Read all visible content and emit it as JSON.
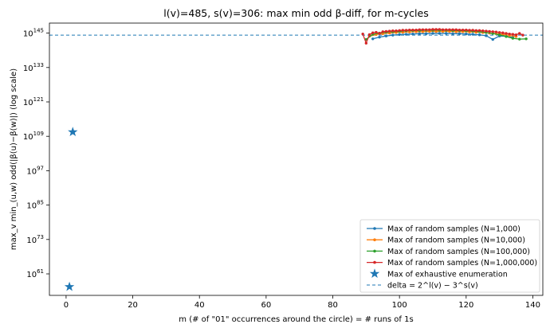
{
  "chart_data": {
    "type": "line",
    "title": "l(v)=485, s(v)=306: max min odd β-diff, for m-cycles",
    "xlabel": "m  (# of \"01\" occurrences around the circle)  = # runs of 1s",
    "ylabel": "max_v min_(u,w) odd(|β(u)−β(w)|)  (log scale)",
    "y_scale": "log10",
    "xlim": [
      -5,
      143
    ],
    "ylim_log10": [
      53.5,
      148.5
    ],
    "x_ticks": [
      0,
      20,
      40,
      60,
      80,
      100,
      120,
      140
    ],
    "y_ticks": [
      {
        "exp": 61,
        "label": "61"
      },
      {
        "exp": 73,
        "label": "73"
      },
      {
        "exp": 85,
        "label": "85"
      },
      {
        "exp": 97,
        "label": "97"
      },
      {
        "exp": 109,
        "label": "109"
      },
      {
        "exp": 121,
        "label": "121"
      },
      {
        "exp": 133,
        "label": "133"
      },
      {
        "exp": 145,
        "label": "145"
      }
    ],
    "y_tick_base": "10",
    "grid": false,
    "legend_position": "lower-right",
    "delta_line": {
      "name": "delta = 2^l(v) − 3^s(v)",
      "log10_value": 144.3,
      "color": "#1f77b4"
    },
    "exhaustive": {
      "name": "Max of exhaustive enumeration",
      "color": "#1f77b4",
      "points": [
        {
          "x": 1,
          "log10_y": 56.5
        },
        {
          "x": 2,
          "log10_y": 110.5
        }
      ]
    },
    "series": [
      {
        "name": "Max of random samples (N=1,000)",
        "color": "#1f77b4",
        "points": [
          [
            92,
            143.0
          ],
          [
            94,
            143.6
          ],
          [
            96,
            144.0
          ],
          [
            98,
            144.3
          ],
          [
            100,
            144.5
          ],
          [
            102,
            144.6
          ],
          [
            104,
            144.7
          ],
          [
            106,
            144.8
          ],
          [
            108,
            144.8
          ],
          [
            110,
            144.9
          ],
          [
            112,
            144.9
          ],
          [
            114,
            144.9
          ],
          [
            116,
            144.8
          ],
          [
            118,
            144.8
          ],
          [
            120,
            144.7
          ],
          [
            122,
            144.6
          ],
          [
            124,
            144.4
          ],
          [
            126,
            144.1
          ],
          [
            128,
            142.8
          ],
          [
            130,
            144.0
          ],
          [
            132,
            143.9
          ],
          [
            134,
            143.5
          ]
        ]
      },
      {
        "name": "Max of random samples (N=10,000)",
        "color": "#ff7f0e",
        "points": [
          [
            91,
            143.9
          ],
          [
            93,
            144.5
          ],
          [
            95,
            144.8
          ],
          [
            97,
            145.0
          ],
          [
            99,
            145.2
          ],
          [
            101,
            145.3
          ],
          [
            103,
            145.4
          ],
          [
            105,
            145.5
          ],
          [
            107,
            145.5
          ],
          [
            109,
            145.6
          ],
          [
            111,
            145.6
          ],
          [
            113,
            145.6
          ],
          [
            115,
            145.6
          ],
          [
            117,
            145.5
          ],
          [
            119,
            145.5
          ],
          [
            121,
            145.4
          ],
          [
            123,
            145.3
          ],
          [
            125,
            145.2
          ],
          [
            127,
            145.0
          ],
          [
            129,
            144.8
          ],
          [
            131,
            144.6
          ],
          [
            133,
            144.2
          ],
          [
            135,
            143.8
          ]
        ]
      },
      {
        "name": "Max of random samples (N=100,000)",
        "color": "#2ca02c",
        "points": [
          [
            90,
            142.8
          ],
          [
            92,
            144.6
          ],
          [
            94,
            145.0
          ],
          [
            96,
            145.3
          ],
          [
            98,
            145.5
          ],
          [
            100,
            145.6
          ],
          [
            102,
            145.8
          ],
          [
            104,
            145.9
          ],
          [
            106,
            145.9
          ],
          [
            108,
            146.0
          ],
          [
            110,
            146.0
          ],
          [
            112,
            146.0
          ],
          [
            114,
            146.0
          ],
          [
            116,
            145.9
          ],
          [
            118,
            145.9
          ],
          [
            120,
            145.8
          ],
          [
            122,
            145.7
          ],
          [
            124,
            145.5
          ],
          [
            126,
            145.2
          ],
          [
            128,
            144.9
          ],
          [
            130,
            144.4
          ],
          [
            132,
            143.8
          ],
          [
            134,
            143.2
          ],
          [
            136,
            142.9
          ],
          [
            138,
            143.0
          ]
        ]
      },
      {
        "name": "Max of random samples (N=1,000,000)",
        "color": "#d62728",
        "points": [
          [
            89,
            144.7
          ],
          [
            90,
            141.5
          ],
          [
            91,
            144.5
          ],
          [
            92,
            145.1
          ],
          [
            93,
            145.3
          ],
          [
            94,
            144.9
          ],
          [
            95,
            145.5
          ],
          [
            96,
            145.6
          ],
          [
            97,
            145.7
          ],
          [
            98,
            145.8
          ],
          [
            99,
            145.8
          ],
          [
            100,
            145.9
          ],
          [
            101,
            146.0
          ],
          [
            102,
            146.0
          ],
          [
            103,
            146.1
          ],
          [
            104,
            146.1
          ],
          [
            105,
            146.1
          ],
          [
            106,
            146.2
          ],
          [
            107,
            146.2
          ],
          [
            108,
            146.2
          ],
          [
            109,
            146.2
          ],
          [
            110,
            146.3
          ],
          [
            111,
            146.3
          ],
          [
            112,
            146.3
          ],
          [
            113,
            146.2
          ],
          [
            114,
            146.2
          ],
          [
            115,
            146.2
          ],
          [
            116,
            146.2
          ],
          [
            117,
            146.2
          ],
          [
            118,
            146.1
          ],
          [
            119,
            146.1
          ],
          [
            120,
            146.1
          ],
          [
            121,
            146.0
          ],
          [
            122,
            146.0
          ],
          [
            123,
            145.9
          ],
          [
            124,
            145.9
          ],
          [
            125,
            145.8
          ],
          [
            126,
            145.7
          ],
          [
            127,
            145.6
          ],
          [
            128,
            145.5
          ],
          [
            129,
            145.4
          ],
          [
            130,
            145.2
          ],
          [
            131,
            145.1
          ],
          [
            132,
            144.9
          ],
          [
            133,
            144.7
          ],
          [
            134,
            144.6
          ],
          [
            135,
            144.4
          ],
          [
            136,
            144.9
          ],
          [
            137,
            144.3
          ]
        ]
      }
    ]
  }
}
